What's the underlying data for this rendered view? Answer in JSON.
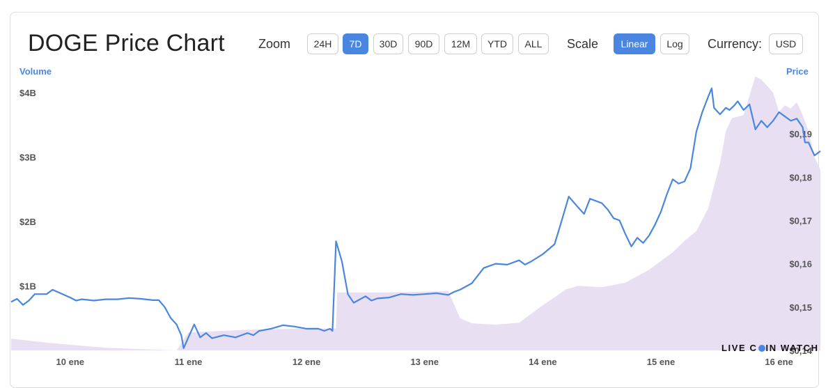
{
  "header": {
    "title": "DOGE Price Chart",
    "zoom_label": "Zoom",
    "zoom_options": [
      "24H",
      "7D",
      "30D",
      "90D",
      "12M",
      "YTD",
      "ALL"
    ],
    "zoom_selected": "7D",
    "scale_label": "Scale",
    "scale_options": [
      "Linear",
      "Log"
    ],
    "scale_selected": "Linear",
    "currency_label": "Currency:",
    "currency_value": "USD"
  },
  "watermark": {
    "part1": "LIVE C",
    "part2": "IN WATCH"
  },
  "colors": {
    "price_line": "#4a86e0",
    "volume_area": "#e9dff2",
    "accent": "#4a86e0"
  },
  "chart_data": {
    "type": "line",
    "y_left_label": "Volume",
    "y_right_label": "Price",
    "x_ticks": [
      {
        "label": "10 ene",
        "x": 0.5
      },
      {
        "label": "11 ene",
        "x": 1.5
      },
      {
        "label": "12 ene",
        "x": 2.5
      },
      {
        "label": "13 ene",
        "x": 3.5
      },
      {
        "label": "14 ene",
        "x": 4.5
      },
      {
        "label": "15 ene",
        "x": 5.5
      },
      {
        "label": "16 ene",
        "x": 6.5
      }
    ],
    "xlim": [
      0,
      6.85
    ],
    "y_left_ticks": [
      {
        "label": "$1B",
        "v": 1
      },
      {
        "label": "$2B",
        "v": 2
      },
      {
        "label": "$3B",
        "v": 3
      },
      {
        "label": "$4B",
        "v": 4
      }
    ],
    "y_left_lim": [
      0,
      4.3
    ],
    "y_right_ticks": [
      {
        "label": "$0,14",
        "v": 0.14
      },
      {
        "label": "$0,15",
        "v": 0.15
      },
      {
        "label": "$0,16",
        "v": 0.16
      },
      {
        "label": "$0,17",
        "v": 0.17
      },
      {
        "label": "$0,18",
        "v": 0.18
      },
      {
        "label": "$0,19",
        "v": 0.19
      }
    ],
    "y_right_lim": [
      0.14,
      0.204
    ],
    "series": [
      {
        "name": "Price",
        "axis": "right",
        "points": [
          [
            0.0,
            0.1512
          ],
          [
            0.05,
            0.1519
          ],
          [
            0.1,
            0.1505
          ],
          [
            0.15,
            0.1515
          ],
          [
            0.2,
            0.153
          ],
          [
            0.3,
            0.153
          ],
          [
            0.35,
            0.154
          ],
          [
            0.45,
            0.1528
          ],
          [
            0.5,
            0.1522
          ],
          [
            0.55,
            0.1515
          ],
          [
            0.6,
            0.1518
          ],
          [
            0.7,
            0.1515
          ],
          [
            0.8,
            0.1518
          ],
          [
            0.9,
            0.1518
          ],
          [
            1.0,
            0.1521
          ],
          [
            1.1,
            0.1519
          ],
          [
            1.2,
            0.1516
          ],
          [
            1.25,
            0.1516
          ],
          [
            1.3,
            0.15
          ],
          [
            1.35,
            0.1475
          ],
          [
            1.4,
            0.146
          ],
          [
            1.44,
            0.1435
          ],
          [
            1.46,
            0.1405
          ],
          [
            1.5,
            0.143
          ],
          [
            1.55,
            0.146
          ],
          [
            1.6,
            0.143
          ],
          [
            1.65,
            0.144
          ],
          [
            1.7,
            0.1428
          ],
          [
            1.8,
            0.1435
          ],
          [
            1.9,
            0.143
          ],
          [
            2.0,
            0.144
          ],
          [
            2.05,
            0.1435
          ],
          [
            2.1,
            0.1445
          ],
          [
            2.2,
            0.145
          ],
          [
            2.3,
            0.1458
          ],
          [
            2.4,
            0.1455
          ],
          [
            2.5,
            0.145
          ],
          [
            2.6,
            0.145
          ],
          [
            2.65,
            0.1445
          ],
          [
            2.7,
            0.145
          ],
          [
            2.72,
            0.1445
          ],
          [
            2.75,
            0.1652
          ],
          [
            2.8,
            0.1605
          ],
          [
            2.85,
            0.153
          ],
          [
            2.9,
            0.151
          ],
          [
            3.0,
            0.1525
          ],
          [
            3.05,
            0.1515
          ],
          [
            3.1,
            0.152
          ],
          [
            3.2,
            0.1522
          ],
          [
            3.3,
            0.153
          ],
          [
            3.4,
            0.1528
          ],
          [
            3.5,
            0.153
          ],
          [
            3.6,
            0.1532
          ],
          [
            3.7,
            0.1528
          ],
          [
            3.75,
            0.1535
          ],
          [
            3.8,
            0.154
          ],
          [
            3.9,
            0.1555
          ],
          [
            4.0,
            0.159
          ],
          [
            4.1,
            0.16
          ],
          [
            4.2,
            0.1598
          ],
          [
            4.3,
            0.1608
          ],
          [
            4.35,
            0.1598
          ],
          [
            4.4,
            0.1605
          ],
          [
            4.5,
            0.1622
          ],
          [
            4.6,
            0.1645
          ],
          [
            4.65,
            0.169
          ],
          [
            4.72,
            0.1755
          ],
          [
            4.8,
            0.173
          ],
          [
            4.85,
            0.1715
          ],
          [
            4.9,
            0.175
          ],
          [
            5.0,
            0.174
          ],
          [
            5.05,
            0.1725
          ],
          [
            5.1,
            0.1705
          ],
          [
            5.15,
            0.17
          ],
          [
            5.2,
            0.1668
          ],
          [
            5.25,
            0.164
          ],
          [
            5.3,
            0.166
          ],
          [
            5.35,
            0.1648
          ],
          [
            5.4,
            0.1665
          ],
          [
            5.45,
            0.169
          ],
          [
            5.5,
            0.172
          ],
          [
            5.55,
            0.176
          ],
          [
            5.6,
            0.1795
          ],
          [
            5.65,
            0.1785
          ],
          [
            5.7,
            0.179
          ],
          [
            5.75,
            0.182
          ],
          [
            5.8,
            0.1905
          ],
          [
            5.85,
            0.195
          ],
          [
            5.9,
            0.1985
          ],
          [
            5.93,
            0.2005
          ],
          [
            5.95,
            0.196
          ],
          [
            6.0,
            0.1945
          ],
          [
            6.05,
            0.196
          ],
          [
            6.08,
            0.1955
          ],
          [
            6.12,
            0.1965
          ],
          [
            6.15,
            0.1975
          ],
          [
            6.2,
            0.1955
          ],
          [
            6.25,
            0.1968
          ],
          [
            6.3,
            0.191
          ],
          [
            6.35,
            0.193
          ],
          [
            6.4,
            0.1915
          ],
          [
            6.45,
            0.193
          ],
          [
            6.5,
            0.195
          ],
          [
            6.55,
            0.194
          ],
          [
            6.6,
            0.193
          ],
          [
            6.65,
            0.1935
          ],
          [
            6.7,
            0.1915
          ],
          [
            6.72,
            0.188
          ],
          [
            6.75,
            0.188
          ],
          [
            6.8,
            0.185
          ],
          [
            6.85,
            0.186
          ]
        ]
      }
    ],
    "volume_area": {
      "name": "Volume",
      "axis": "left",
      "points": [
        [
          0.0,
          0.18
        ],
        [
          0.3,
          0.12
        ],
        [
          0.8,
          0.04
        ],
        [
          1.4,
          0.0
        ],
        [
          1.5,
          0.28
        ],
        [
          2.0,
          0.32
        ],
        [
          2.5,
          0.34
        ],
        [
          2.75,
          0.34
        ],
        [
          2.76,
          0.9
        ],
        [
          3.2,
          0.9
        ],
        [
          3.5,
          0.91
        ],
        [
          3.7,
          0.92
        ],
        [
          3.8,
          0.5
        ],
        [
          3.9,
          0.42
        ],
        [
          4.1,
          0.4
        ],
        [
          4.3,
          0.43
        ],
        [
          4.5,
          0.7
        ],
        [
          4.7,
          0.95
        ],
        [
          4.8,
          1.0
        ],
        [
          5.0,
          0.98
        ],
        [
          5.2,
          1.05
        ],
        [
          5.4,
          1.25
        ],
        [
          5.6,
          1.52
        ],
        [
          5.7,
          1.7
        ],
        [
          5.8,
          1.85
        ],
        [
          5.9,
          2.2
        ],
        [
          6.0,
          2.9
        ],
        [
          6.05,
          3.4
        ],
        [
          6.1,
          3.6
        ],
        [
          6.2,
          3.65
        ],
        [
          6.3,
          4.25
        ],
        [
          6.35,
          4.2
        ],
        [
          6.4,
          4.1
        ],
        [
          6.45,
          4.0
        ],
        [
          6.5,
          3.7
        ],
        [
          6.55,
          3.8
        ],
        [
          6.6,
          3.75
        ],
        [
          6.65,
          3.85
        ],
        [
          6.7,
          3.65
        ],
        [
          6.75,
          3.4
        ],
        [
          6.8,
          3.0
        ],
        [
          6.85,
          2.8
        ]
      ]
    },
    "legend": "none",
    "grid": false
  }
}
